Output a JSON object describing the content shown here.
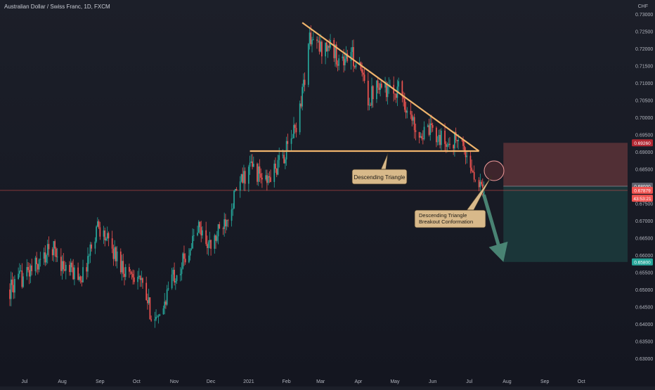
{
  "header": {
    "symbol_title": "Australian Dollar / Swiss Franc, 1D, FXCM",
    "currency": "CHF"
  },
  "colors": {
    "background": "#181b24",
    "up_candle": "#26a69a",
    "down_candle": "#ef5350",
    "pattern_line": "#f0b46c",
    "loss_zone": "#5c3238",
    "profit_zone": "#1c3a3c",
    "projection_arrow": "#4f8f7c",
    "current_price_line": "#ef5350",
    "axis_text": "#b2b5be"
  },
  "annotations": {
    "triangle_label": "Descending Triangle",
    "breakout_label_line1": "Descending Triangle",
    "breakout_label_line2": "Breakout Conformation"
  },
  "chart_data": {
    "type": "candlestick",
    "title": "Australian Dollar / Swiss Franc, 1D, FXCM",
    "ylabel": "CHF",
    "ylim": [
      0.6265,
      0.7315
    ],
    "y_ticks": [
      0.73,
      0.725,
      0.72,
      0.715,
      0.71,
      0.705,
      0.7,
      0.695,
      0.69,
      0.685,
      0.68,
      0.675,
      0.67,
      0.665,
      0.66,
      0.655,
      0.65,
      0.645,
      0.64,
      0.635,
      0.63
    ],
    "y_tick_labels": [
      "0.73000",
      "0.72500",
      "0.72000",
      "0.71500",
      "0.71000",
      "0.70500",
      "0.70000",
      "0.69500",
      "0.69000",
      "0.68500",
      "0.68000",
      "0.67500",
      "0.67000",
      "0.66500",
      "0.66000",
      "0.65500",
      "0.65000",
      "0.64500",
      "0.64000",
      "0.63500",
      "0.63000"
    ],
    "x_range_days": [
      0,
      440
    ],
    "x_tick_labels": [
      "Jul",
      "Aug",
      "Sep",
      "Oct",
      "Nov",
      "Dec",
      "2021",
      "Feb",
      "Mar",
      "Apr",
      "May",
      "Jun",
      "Jul",
      "Aug",
      "Sep",
      "Oct"
    ],
    "x_tick_days": [
      12,
      43,
      74,
      104,
      135,
      165,
      196,
      227,
      255,
      286,
      316,
      347,
      377,
      408,
      439,
      469
    ],
    "price_path": [
      [
        0,
        0.65
      ],
      [
        10,
        0.6535
      ],
      [
        25,
        0.658
      ],
      [
        35,
        0.6625
      ],
      [
        45,
        0.656
      ],
      [
        60,
        0.654
      ],
      [
        72,
        0.669
      ],
      [
        85,
        0.661
      ],
      [
        95,
        0.6555
      ],
      [
        105,
        0.6545
      ],
      [
        115,
        0.644
      ],
      [
        122,
        0.64
      ],
      [
        132,
        0.653
      ],
      [
        142,
        0.658
      ],
      [
        155,
        0.668
      ],
      [
        165,
        0.662
      ],
      [
        176,
        0.67
      ],
      [
        188,
        0.68
      ],
      [
        198,
        0.686
      ],
      [
        210,
        0.681
      ],
      [
        220,
        0.686
      ],
      [
        228,
        0.691
      ],
      [
        236,
        0.699
      ],
      [
        242,
        0.712
      ],
      [
        246,
        0.723
      ],
      [
        255,
        0.72
      ],
      [
        262,
        0.721
      ],
      [
        272,
        0.716
      ],
      [
        280,
        0.7185
      ],
      [
        288,
        0.713
      ],
      [
        295,
        0.705
      ],
      [
        302,
        0.711
      ],
      [
        312,
        0.707
      ],
      [
        320,
        0.709
      ],
      [
        328,
        0.7
      ],
      [
        338,
        0.695
      ],
      [
        348,
        0.696
      ],
      [
        358,
        0.692
      ],
      [
        366,
        0.6935
      ],
      [
        372,
        0.692
      ],
      [
        376,
        0.688
      ],
      [
        380,
        0.6835
      ],
      [
        385,
        0.68
      ],
      [
        389,
        0.6785
      ]
    ],
    "descending_triangle": {
      "resistance_line": {
        "start": {
          "day": 240,
          "price": 0.7275
        },
        "end": {
          "day": 385,
          "price": 0.6902
        }
      },
      "support_line": {
        "start": {
          "day": 197,
          "price": 0.6902
        },
        "end": {
          "day": 385,
          "price": 0.6902
        }
      }
    },
    "price_labels": [
      {
        "value": 0.6926,
        "text": "0.69260",
        "color": "#b22833"
      },
      {
        "value": 0.68,
        "text": "0.68000",
        "color": "#5d606b"
      },
      {
        "value": 0.67879,
        "text": "0.67879",
        "color": "#ef5350"
      },
      {
        "value": 0.6765,
        "text": "43:53:21",
        "color": "#ef5350"
      },
      {
        "value": 0.658,
        "text": "0.65800",
        "color": "#26a69a"
      }
    ],
    "current_price": 0.67879,
    "position": {
      "entry": 0.68,
      "stop": 0.6926,
      "target": 0.658,
      "start_day": 405
    },
    "projection_arrow": {
      "from": {
        "day": 389,
        "price": 0.6775
      },
      "to": {
        "day": 405,
        "price": 0.658
      }
    }
  }
}
